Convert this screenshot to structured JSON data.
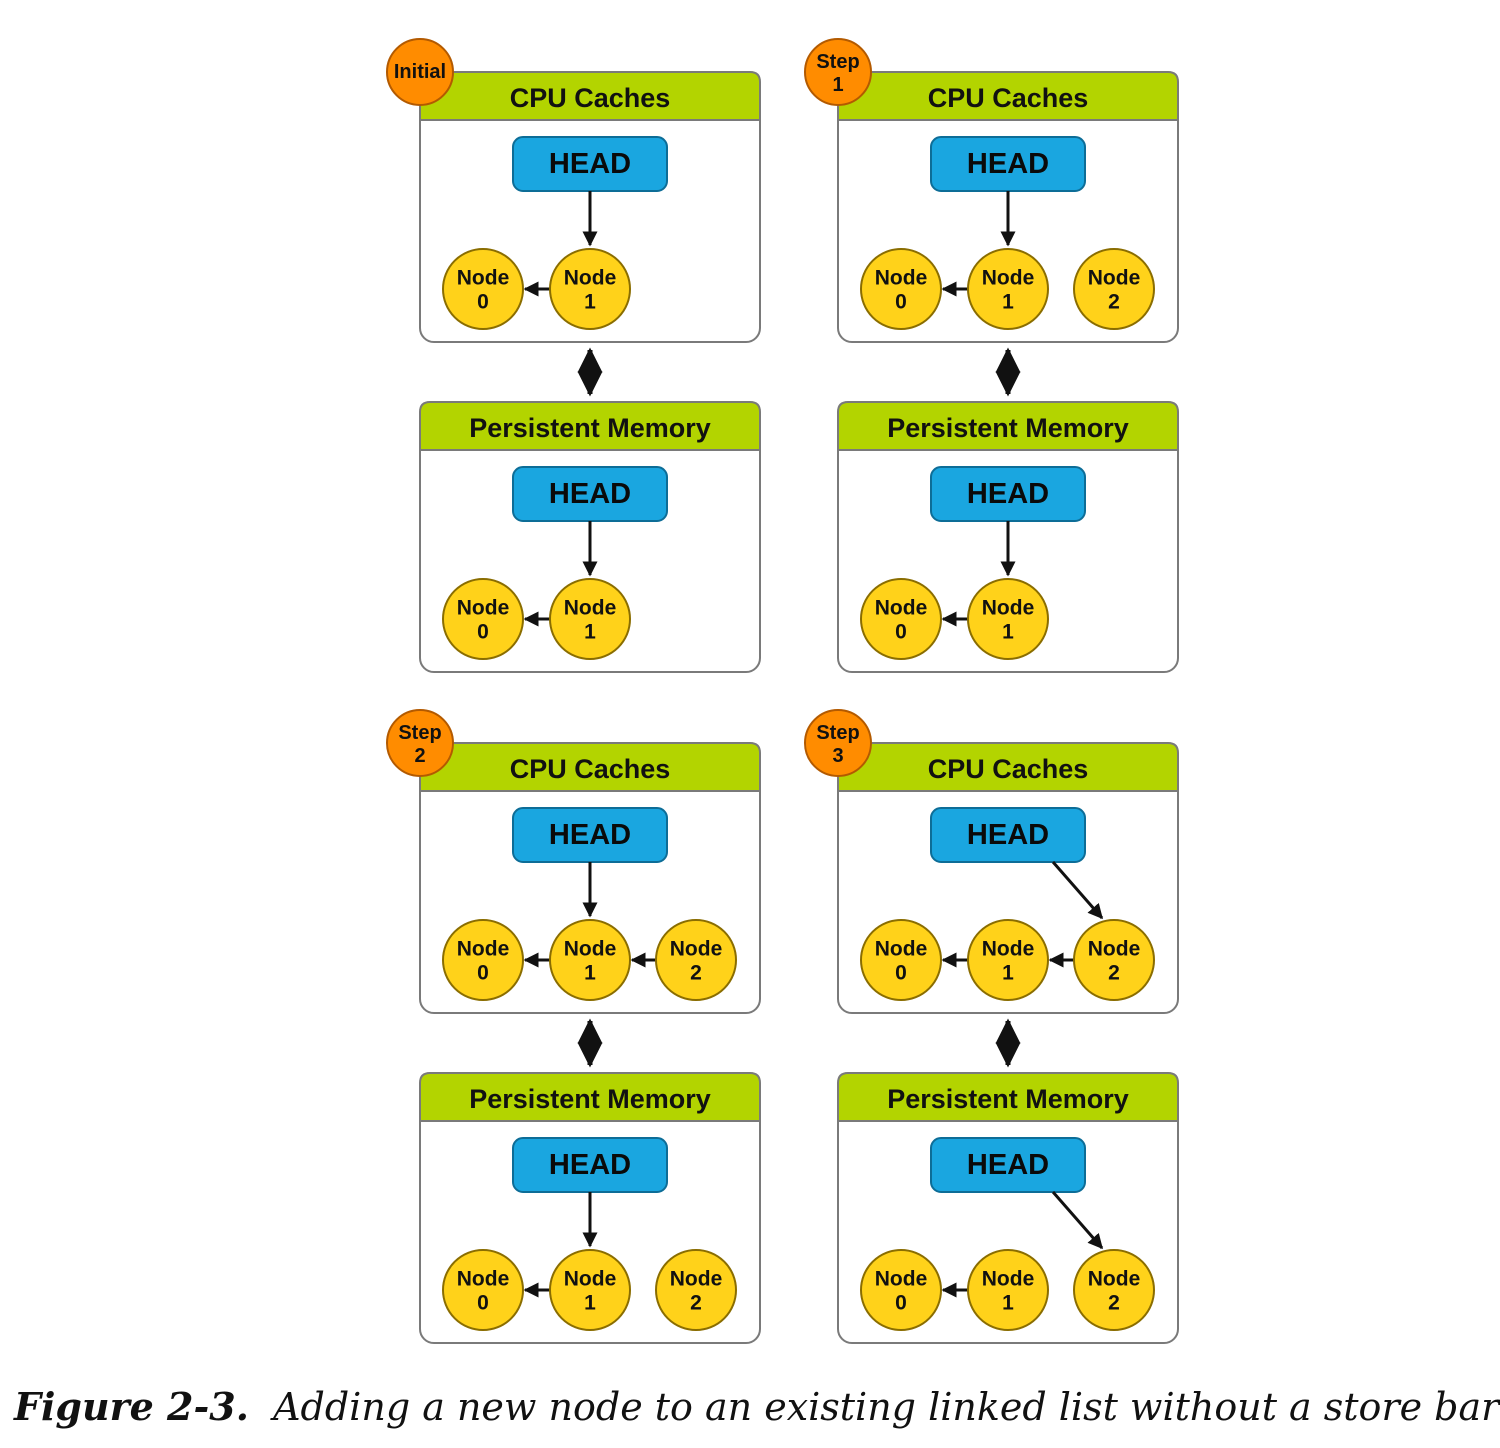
{
  "diagram": {
    "memory_titles": {
      "cache": "CPU Caches",
      "persistent": "Persistent Memory"
    },
    "head_label": "HEAD",
    "states": [
      {
        "badge": [
          "Initial"
        ],
        "cache": {
          "nodes": [
            [
              "Node",
              "0"
            ],
            [
              "Node",
              "1"
            ]
          ],
          "head_points_to": 1,
          "links": [
            [
              1,
              0
            ]
          ]
        },
        "persistent": {
          "nodes": [
            [
              "Node",
              "0"
            ],
            [
              "Node",
              "1"
            ]
          ],
          "head_points_to": 1,
          "links": [
            [
              1,
              0
            ]
          ]
        }
      },
      {
        "badge": [
          "Step",
          "1"
        ],
        "cache": {
          "nodes": [
            [
              "Node",
              "0"
            ],
            [
              "Node",
              "1"
            ],
            [
              "Node",
              "2"
            ]
          ],
          "head_points_to": 1,
          "links": [
            [
              1,
              0
            ]
          ]
        },
        "persistent": {
          "nodes": [
            [
              "Node",
              "0"
            ],
            [
              "Node",
              "1"
            ]
          ],
          "head_points_to": 1,
          "links": [
            [
              1,
              0
            ]
          ]
        }
      },
      {
        "badge": [
          "Step",
          "2"
        ],
        "cache": {
          "nodes": [
            [
              "Node",
              "0"
            ],
            [
              "Node",
              "1"
            ],
            [
              "Node",
              "2"
            ]
          ],
          "head_points_to": 1,
          "links": [
            [
              1,
              0
            ],
            [
              2,
              1
            ]
          ]
        },
        "persistent": {
          "nodes": [
            [
              "Node",
              "0"
            ],
            [
              "Node",
              "1"
            ],
            [
              "Node",
              "2"
            ]
          ],
          "head_points_to": 1,
          "links": [
            [
              1,
              0
            ]
          ]
        }
      },
      {
        "badge": [
          "Step",
          "3"
        ],
        "cache": {
          "nodes": [
            [
              "Node",
              "0"
            ],
            [
              "Node",
              "1"
            ],
            [
              "Node",
              "2"
            ]
          ],
          "head_points_to": 2,
          "links": [
            [
              1,
              0
            ],
            [
              2,
              1
            ]
          ]
        },
        "persistent": {
          "nodes": [
            [
              "Node",
              "0"
            ],
            [
              "Node",
              "1"
            ],
            [
              "Node",
              "2"
            ]
          ],
          "head_points_to": 2,
          "links": [
            [
              1,
              0
            ]
          ]
        }
      }
    ]
  },
  "caption": {
    "label": "Figure 2-3.",
    "text": "Adding a new node to an existing linked list without a store barrier"
  }
}
